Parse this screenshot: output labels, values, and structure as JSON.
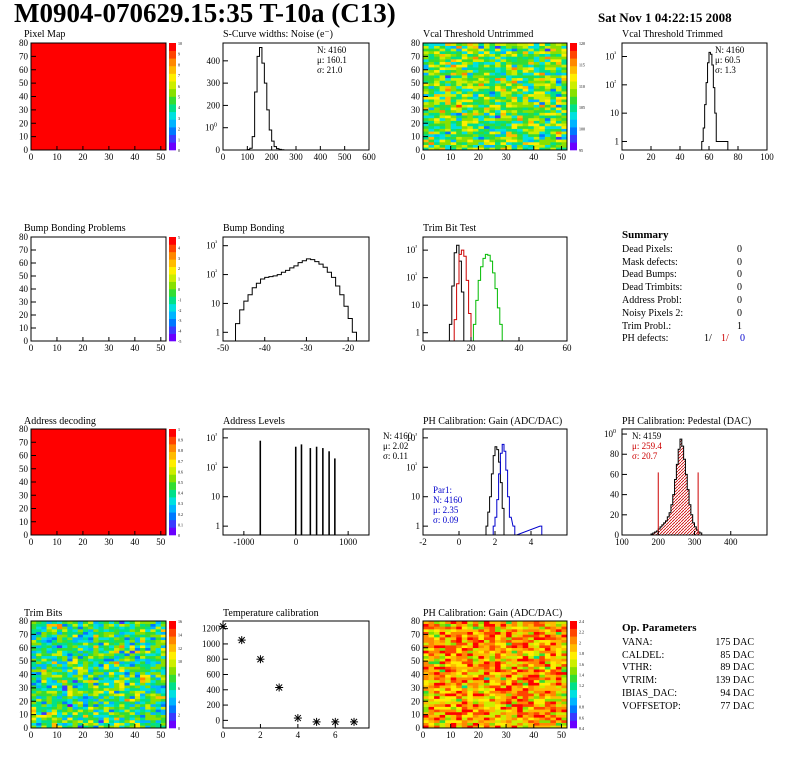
{
  "header": {
    "title": "M0904-070629.15:35 T-10a (C13)",
    "date": "Sat Nov  1 04:22:15 2008"
  },
  "palette": [
    "#6a00ff",
    "#3a3aff",
    "#0078ff",
    "#00b4ff",
    "#00e0e0",
    "#00e08a",
    "#33dd33",
    "#88e000",
    "#ccee00",
    "#ffee00",
    "#ffbb00",
    "#ff8800",
    "#ff4400",
    "#ff0000"
  ],
  "colors": {
    "line": "#000000",
    "red": "#cc0000",
    "green": "#00bb00",
    "blue": "#0000cc",
    "hatch": "#cc0000"
  },
  "chart_data": [
    {
      "id": "pixel_map",
      "type": "heatmap",
      "title": "Pixel Map",
      "xlim": [
        0,
        52
      ],
      "ylim": [
        0,
        80
      ],
      "xticks": [
        "0",
        "10",
        "20",
        "30",
        "40",
        "50"
      ],
      "yticks": [
        "0",
        "10",
        "20",
        "30",
        "40",
        "50",
        "60",
        "70",
        "80"
      ],
      "colorbar": {
        "ticks": [
          "0",
          "1",
          "2",
          "3",
          "4",
          "5",
          "6",
          "7",
          "8",
          "9",
          "10"
        ],
        "min": 0,
        "max": 10
      },
      "cells": "uniform",
      "value": 10
    },
    {
      "id": "scurve",
      "type": "histogram",
      "title": "S-Curve widths: Noise (e⁻)",
      "xlim": [
        0,
        600
      ],
      "ylim": [
        0,
        480
      ],
      "log": false,
      "xticks": [
        "0",
        "100",
        "200",
        "300",
        "400",
        "500",
        "600"
      ],
      "yticks": [
        "0",
        "100",
        "200",
        "300",
        "400"
      ],
      "stats": [
        "N: 4160",
        "μ: 160.1",
        "σ: 21.0"
      ],
      "series": [
        {
          "color": "line",
          "x": [
            100,
            110,
            120,
            130,
            140,
            150,
            160,
            170,
            180,
            190,
            200,
            210,
            220,
            230,
            240,
            250
          ],
          "values": [
            2,
            8,
            60,
            260,
            420,
            460,
            390,
            300,
            180,
            90,
            40,
            15,
            6,
            3,
            1,
            0
          ]
        }
      ]
    },
    {
      "id": "vcal_untrim",
      "type": "heatmap",
      "title": "Vcal Threshold Untrimmed",
      "xlim": [
        0,
        52
      ],
      "ylim": [
        0,
        80
      ],
      "xticks": [
        "0",
        "10",
        "20",
        "30",
        "40",
        "50"
      ],
      "yticks": [
        "0",
        "10",
        "20",
        "30",
        "40",
        "50",
        "60",
        "70",
        "80"
      ],
      "colorbar": {
        "ticks": [
          "95",
          "100",
          "105",
          "110",
          "115",
          "120"
        ],
        "min": 92,
        "max": 122
      },
      "cells": "random",
      "value": 107
    },
    {
      "id": "vcal_trim",
      "type": "histogram",
      "title": "Vcal Threshold Trimmed",
      "xlim": [
        0,
        100
      ],
      "ylim": [
        0.5,
        3000
      ],
      "log": true,
      "xticks": [
        "0",
        "20",
        "40",
        "60",
        "80",
        "100"
      ],
      "yticks": [
        "1",
        "10",
        "10²",
        "10³"
      ],
      "stats": [
        "N: 4160",
        "μ: 60.5",
        "σ:  1.3"
      ],
      "series": [
        {
          "color": "line",
          "x": [
            55,
            56,
            57,
            58,
            59,
            60,
            61,
            62,
            63,
            64,
            65,
            72,
            73
          ],
          "values": [
            1,
            3,
            20,
            120,
            600,
            1400,
            1200,
            500,
            80,
            10,
            1,
            1,
            0
          ]
        }
      ]
    },
    {
      "id": "bump_problems",
      "type": "heatmap",
      "title": "Bump Bonding Problems",
      "xlim": [
        0,
        52
      ],
      "ylim": [
        0,
        80
      ],
      "xticks": [
        "0",
        "10",
        "20",
        "30",
        "40",
        "50"
      ],
      "yticks": [
        "0",
        "10",
        "20",
        "30",
        "40",
        "50",
        "60",
        "70",
        "80"
      ],
      "colorbar": {
        "ticks": [
          "-5",
          "-4",
          "-3",
          "-2",
          "-1",
          "0",
          "1",
          "2",
          "3",
          "4",
          "5"
        ],
        "min": -5,
        "max": 5
      },
      "cells": "empty",
      "value": 0
    },
    {
      "id": "bump_bonding",
      "type": "histogram",
      "title": "Bump Bonding",
      "xlim": [
        -50,
        -15
      ],
      "ylim": [
        0.5,
        2000
      ],
      "log": true,
      "xticks": [
        "-50",
        "-40",
        "-30",
        "-20"
      ],
      "yticks": [
        "1",
        "10",
        "10²",
        "10³"
      ],
      "stats": [],
      "series": [
        {
          "color": "line",
          "x": [
            -47,
            -46,
            -45,
            -44,
            -43,
            -42,
            -41,
            -40,
            -39,
            -38,
            -37,
            -36,
            -35,
            -34,
            -33,
            -32,
            -31,
            -30,
            -29,
            -28,
            -27,
            -26,
            -25,
            -24,
            -23,
            -22,
            -21,
            -20,
            -19,
            -18
          ],
          "values": [
            2,
            6,
            12,
            20,
            35,
            50,
            70,
            80,
            85,
            90,
            100,
            120,
            140,
            170,
            200,
            260,
            300,
            350,
            330,
            280,
            230,
            180,
            120,
            80,
            40,
            20,
            8,
            3,
            1,
            0
          ]
        }
      ]
    },
    {
      "id": "trim_bit_test",
      "type": "histogram",
      "title": "Trim Bit Test",
      "xlim": [
        0,
        60
      ],
      "ylim": [
        0.5,
        3000
      ],
      "log": true,
      "xticks": [
        "0",
        "20",
        "40",
        "60"
      ],
      "yticks": [
        "1",
        "10",
        "10²",
        "10³"
      ],
      "stats": [],
      "series": [
        {
          "color": "line",
          "x": [
            11,
            12,
            13,
            14,
            15,
            16,
            17
          ],
          "values": [
            2,
            50,
            800,
            1500,
            400,
            30,
            0
          ]
        },
        {
          "color": "red",
          "x": [
            13,
            14,
            15,
            16,
            17,
            18,
            19,
            20
          ],
          "values": [
            3,
            60,
            700,
            1000,
            600,
            80,
            5,
            0
          ]
        },
        {
          "color": "green",
          "x": [
            21,
            22,
            23,
            24,
            25,
            26,
            27,
            28,
            29,
            30,
            31,
            32,
            33
          ],
          "values": [
            2,
            15,
            80,
            250,
            500,
            700,
            650,
            400,
            150,
            40,
            8,
            2,
            0
          ]
        }
      ]
    },
    {
      "id": "summary",
      "type": "table",
      "title": "Summary",
      "rows": [
        {
          "label": "Dead Pixels:",
          "value": "0"
        },
        {
          "label": "Mask defects:",
          "value": "0"
        },
        {
          "label": "Dead Bumps:",
          "value": "0"
        },
        {
          "label": "Dead Trimbits:",
          "value": "0"
        },
        {
          "label": "Address Probl:",
          "value": "0"
        },
        {
          "label": "Noisy Pixels 2:",
          "value": "0"
        },
        {
          "label": "Trim Probl.:",
          "value": "1"
        }
      ],
      "ph_label": "PH defects:",
      "ph_values": [
        "1/",
        "1/",
        "0"
      ]
    },
    {
      "id": "address_decoding",
      "type": "heatmap",
      "title": "Address decoding",
      "xlim": [
        0,
        52
      ],
      "ylim": [
        0,
        80
      ],
      "xticks": [
        "0",
        "10",
        "20",
        "30",
        "40",
        "50"
      ],
      "yticks": [
        "0",
        "10",
        "20",
        "30",
        "40",
        "50",
        "60",
        "70",
        "80"
      ],
      "colorbar": {
        "ticks": [
          "0",
          "0.1",
          "0.2",
          "0.3",
          "0.4",
          "0.5",
          "0.6",
          "0.7",
          "0.8",
          "0.9",
          "1"
        ],
        "min": 0,
        "max": 1
      },
      "cells": "uniform",
      "value": 1
    },
    {
      "id": "address_levels",
      "type": "histogram",
      "title": "Address Levels",
      "xlim": [
        -1400,
        1400
      ],
      "ylim": [
        0.5,
        2000
      ],
      "log": true,
      "xticks": [
        "-1000",
        "0",
        "1000"
      ],
      "yticks": [
        "1",
        "10",
        "10²",
        "10³"
      ],
      "stats": [],
      "spikes": {
        "x": [
          -700,
          -20,
          90,
          260,
          380,
          500,
          620,
          730
        ],
        "values": [
          800,
          500,
          600,
          450,
          500,
          450,
          350,
          200
        ],
        "width": 30
      }
    },
    {
      "id": "ph_gain",
      "type": "histogram",
      "title": "PH Calibration: Gain (ADC/DAC)",
      "xlim": [
        -2,
        6
      ],
      "ylim": [
        0.5,
        2000
      ],
      "log": true,
      "xticks": [
        "-2",
        "0",
        "2",
        "4"
      ],
      "yticks": [
        "1",
        "10",
        "10²",
        "10³"
      ],
      "stats": [
        "N: 4160",
        "μ: 2.02",
        "σ: 0.11"
      ],
      "stats2": [
        "Par1:",
        "N: 4160",
        "μ: 2.35",
        "σ: 0.09"
      ],
      "series": [
        {
          "color": "line",
          "x": [
            1.5,
            1.6,
            1.7,
            1.8,
            1.9,
            2.0,
            2.1,
            2.2,
            2.3,
            2.4,
            2.5
          ],
          "values": [
            1,
            3,
            10,
            60,
            250,
            500,
            400,
            150,
            30,
            4,
            0
          ]
        },
        {
          "color": "blue",
          "x": [
            1.9,
            2.0,
            2.1,
            2.2,
            2.3,
            2.4,
            2.5,
            2.6,
            2.7,
            2.8,
            3.0,
            3.1,
            4.5,
            4.6
          ],
          "values": [
            1,
            2,
            8,
            60,
            300,
            600,
            350,
            80,
            10,
            2,
            1,
            0,
            1,
            0
          ]
        }
      ]
    },
    {
      "id": "ph_pedestal",
      "type": "histogram",
      "title": "PH Calibration: Pedestal (DAC)",
      "xlim": [
        100,
        500
      ],
      "ylim": [
        0,
        105
      ],
      "log": false,
      "xticks": [
        "100",
        "200",
        "300",
        "400"
      ],
      "yticks": [
        "0",
        "20",
        "40",
        "60",
        "80",
        "100"
      ],
      "stats": [
        "N: 4159",
        "μ: 259.4",
        "σ: 20.7"
      ],
      "stats_colors": [
        "line",
        "red",
        "red"
      ],
      "series": [
        {
          "color": "line",
          "x": [
            180,
            185,
            190,
            195,
            200,
            205,
            210,
            215,
            220,
            225,
            230,
            235,
            240,
            245,
            250,
            255,
            260,
            265,
            270,
            275,
            280,
            285,
            290,
            295,
            300,
            305,
            310,
            315,
            320
          ],
          "values": [
            1,
            2,
            3,
            4,
            6,
            8,
            10,
            12,
            14,
            18,
            22,
            30,
            40,
            55,
            70,
            85,
            95,
            88,
            75,
            60,
            45,
            30,
            20,
            12,
            8,
            5,
            3,
            2,
            0
          ]
        }
      ],
      "markers": [
        200,
        310
      ]
    },
    {
      "id": "trim_bits",
      "type": "heatmap",
      "title": "Trim Bits",
      "xlim": [
        0,
        52
      ],
      "ylim": [
        0,
        80
      ],
      "xticks": [
        "0",
        "10",
        "20",
        "30",
        "40",
        "50"
      ],
      "yticks": [
        "0",
        "10",
        "20",
        "30",
        "40",
        "50",
        "60",
        "70",
        "80"
      ],
      "colorbar": {
        "ticks": [
          "0",
          "2",
          "4",
          "6",
          "8",
          "10",
          "12",
          "14",
          "16"
        ],
        "min": 0,
        "max": 16
      },
      "cells": "random",
      "value": 7
    },
    {
      "id": "temperature",
      "type": "scatter",
      "title": "Temperature calibration",
      "xlim": [
        0,
        7.8
      ],
      "ylim": [
        -100,
        1300
      ],
      "log": false,
      "xticks": [
        "0",
        "2",
        "4",
        "6"
      ],
      "yticks": [
        "0",
        "200",
        "400",
        "600",
        "800",
        "1000",
        "1200"
      ],
      "x": [
        0,
        1,
        2,
        3,
        4,
        5,
        6,
        7
      ],
      "y": [
        1230,
        1050,
        800,
        430,
        30,
        -20,
        -20,
        -20
      ]
    },
    {
      "id": "ph_gain_map",
      "type": "heatmap",
      "title": "PH Calibration: Gain (ADC/DAC)",
      "xlim": [
        0,
        52
      ],
      "ylim": [
        0,
        80
      ],
      "xticks": [
        "0",
        "10",
        "20",
        "30",
        "40",
        "50"
      ],
      "yticks": [
        "0",
        "10",
        "20",
        "30",
        "40",
        "50",
        "60",
        "70",
        "80"
      ],
      "colorbar": {
        "ticks": [
          "0.4",
          "0.6",
          "0.8",
          "1",
          "1.2",
          "1.4",
          "1.6",
          "1.8",
          "2",
          "2.2",
          "2.4"
        ],
        "min": 0.3,
        "max": 2.5
      },
      "cells": "random",
      "value": 2.0
    },
    {
      "id": "op_params",
      "type": "table",
      "title": "Op. Parameters",
      "rows": [
        {
          "label": "VANA:",
          "value": "175 DAC"
        },
        {
          "label": "CALDEL:",
          "value": "85 DAC"
        },
        {
          "label": "VTHR:",
          "value": "89 DAC"
        },
        {
          "label": "VTRIM:",
          "value": "139 DAC"
        },
        {
          "label": "IBIAS_DAC:",
          "value": "94 DAC"
        },
        {
          "label": "VOFFSETOP:",
          "value": "77 DAC"
        }
      ]
    }
  ]
}
